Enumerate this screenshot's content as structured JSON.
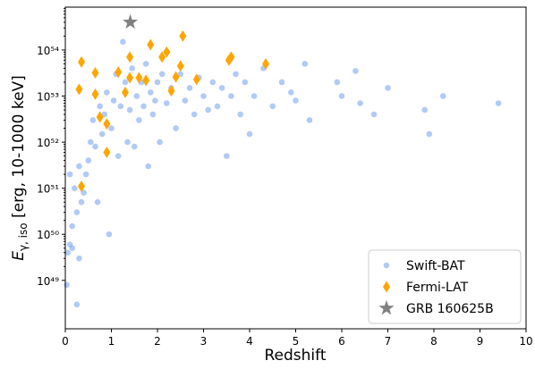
{
  "chart_data": {
    "type": "scatter",
    "x_label": "Redshift",
    "y_label": {
      "main": "E",
      "sub": "γ, iso",
      "rest": " [erg, 10-1000 keV]"
    },
    "xlim": [
      0,
      10
    ],
    "xticks": [
      0,
      1,
      2,
      3,
      4,
      5,
      6,
      7,
      8,
      9,
      10
    ],
    "ylim": [
      8.9e+47,
      8.5e+54
    ],
    "y_log": true,
    "yticks": [
      {
        "value": 1e+49,
        "label": "10⁴⁹"
      },
      {
        "value": 1e+50,
        "label": "10⁵⁰"
      },
      {
        "value": 1e+51,
        "label": "10⁵¹"
      },
      {
        "value": 1e+52,
        "label": "10⁵²"
      },
      {
        "value": 1e+53,
        "label": "10⁵³"
      },
      {
        "value": 1e+54,
        "label": "10⁵⁴"
      }
    ],
    "legend": "lower right",
    "series": [
      {
        "name": "Swift-BAT",
        "color": "#6495ed",
        "marker": "circle",
        "x": [
          0.03,
          0.25,
          0.05,
          0.1,
          0.15,
          0.2,
          0.25,
          0.3,
          0.35,
          0.4,
          0.45,
          0.5,
          0.55,
          0.6,
          0.65,
          0.7,
          0.75,
          0.8,
          0.85,
          0.9,
          0.95,
          1.0,
          1.05,
          1.1,
          1.15,
          1.2,
          1.25,
          1.3,
          1.35,
          1.4,
          1.45,
          1.5,
          1.55,
          1.6,
          1.65,
          1.7,
          1.75,
          1.8,
          1.85,
          1.9,
          1.95,
          2.0,
          2.05,
          2.1,
          2.2,
          2.3,
          2.4,
          2.5,
          2.6,
          2.7,
          2.8,
          2.9,
          3.0,
          3.1,
          3.2,
          3.3,
          3.4,
          3.5,
          3.6,
          3.7,
          3.8,
          3.9,
          4.0,
          4.1,
          4.3,
          4.5,
          4.7,
          4.9,
          5.0,
          5.2,
          5.3,
          5.9,
          6.0,
          6.3,
          6.4,
          6.7,
          7.0,
          7.8,
          7.9,
          8.2,
          9.4,
          0.1,
          0.15,
          0.3
        ],
        "values": [
          8e+48,
          3e+48,
          4e+49,
          6e+49,
          1.5e+50,
          1e+51,
          3e+50,
          3e+51,
          5e+50,
          8e+50,
          2e+51,
          4e+51,
          1e+52,
          3e+52,
          8e+51,
          5e+50,
          6e+52,
          1.5e+52,
          4e+52,
          1.2e+53,
          1e+50,
          2e+52,
          8e+52,
          3e+53,
          5e+51,
          6e+52,
          1.5e+54,
          2e+53,
          1e+52,
          5e+52,
          4e+53,
          8e+51,
          1e+53,
          3e+52,
          2e+53,
          6e+52,
          5e+53,
          3e+51,
          1.2e+53,
          4e+52,
          8e+52,
          2e+53,
          1e+52,
          3e+53,
          7e+52,
          1.5e+53,
          2e+52,
          3e+53,
          8e+52,
          1.5e+53,
          4e+52,
          2.5e+53,
          1e+53,
          5e+52,
          2e+53,
          6e+52,
          1.5e+53,
          5e+51,
          1e+53,
          3e+53,
          4e+52,
          2e+53,
          1.5e+52,
          1e+53,
          4e+53,
          6e+52,
          2e+53,
          1.2e+53,
          8e+52,
          5e+53,
          3e+52,
          2e+53,
          1e+53,
          3.5e+53,
          7e+52,
          4e+52,
          1.5e+53,
          5e+52,
          1.5e+52,
          1e+53,
          7e+52,
          2e+51,
          5e+49,
          3e+49
        ]
      },
      {
        "name": "Fermi-LAT",
        "color": "#ffa500",
        "marker": "diamond",
        "x": [
          0.35,
          0.3,
          0.35,
          0.65,
          0.65,
          0.75,
          0.9,
          0.9,
          1.15,
          1.3,
          1.4,
          1.4,
          1.6,
          1.75,
          1.85,
          2.1,
          2.2,
          2.3,
          2.4,
          2.5,
          2.55,
          2.85,
          3.55,
          3.6,
          4.35
        ],
        "values": [
          5.5e+53,
          1.4e+53,
          1.1e+51,
          3.2e+53,
          1.1e+53,
          3.5e+52,
          2.5e+52,
          6e+51,
          3.3e+53,
          1.2e+53,
          7e+53,
          2.5e+53,
          2.5e+53,
          2.2e+53,
          1.3e+54,
          7e+53,
          9e+53,
          1.3e+53,
          2.6e+53,
          4.5e+53,
          2e+54,
          2.3e+53,
          6e+53,
          7e+53,
          5e+53
        ]
      },
      {
        "name": "GRB 160625B",
        "color": "#808080",
        "marker": "star",
        "x": [
          1.41
        ],
        "values": [
          4e+54
        ]
      }
    ]
  }
}
